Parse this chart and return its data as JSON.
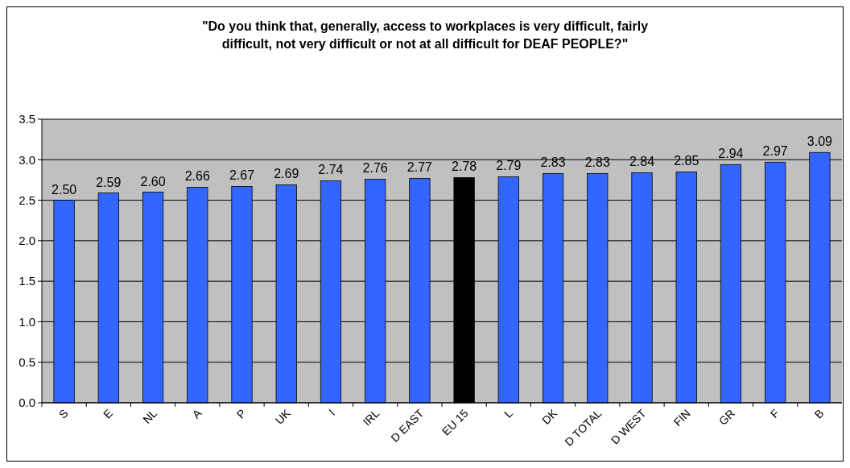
{
  "chart_data": {
    "type": "bar",
    "title": "\"Do you think that, generally, access to workplaces is very difficult, fairly difficult, not very difficult or not at all difficult for DEAF PEOPLE?\"",
    "categories": [
      "S",
      "E",
      "NL",
      "A",
      "P",
      "UK",
      "I",
      "IRL",
      "D EAST",
      "EU 15",
      "L",
      "DK",
      "D TOTAL",
      "D WEST",
      "FIN",
      "GR",
      "F",
      "B"
    ],
    "values": [
      2.5,
      2.59,
      2.6,
      2.66,
      2.67,
      2.69,
      2.74,
      2.76,
      2.77,
      2.78,
      2.79,
      2.83,
      2.83,
      2.84,
      2.85,
      2.94,
      2.97,
      3.09
    ],
    "colors": [
      "#3366ff",
      "#3366ff",
      "#3366ff",
      "#3366ff",
      "#3366ff",
      "#3366ff",
      "#3366ff",
      "#3366ff",
      "#3366ff",
      "#000000",
      "#3366ff",
      "#3366ff",
      "#3366ff",
      "#3366ff",
      "#3366ff",
      "#3366ff",
      "#3366ff",
      "#3366ff"
    ],
    "ylim": [
      0,
      3.5
    ],
    "yticks": [
      {
        "value": 0,
        "label": "0.0"
      },
      {
        "value": 0.5,
        "label": "0.5"
      },
      {
        "value": 1,
        "label": "1.0"
      },
      {
        "value": 1.5,
        "label": "1.5"
      },
      {
        "value": 2,
        "label": "2.0"
      },
      {
        "value": 2.5,
        "label": "2.5"
      },
      {
        "value": 3,
        "label": "3.0"
      },
      {
        "value": 3.5,
        "label": "3.5"
      }
    ],
    "value_labels": [
      "2.50",
      "2.59",
      "2.60",
      "2.66",
      "2.67",
      "2.69",
      "2.74",
      "2.76",
      "2.77",
      "2.78",
      "2.79",
      "2.83",
      "2.83",
      "2.84",
      "2.85",
      "2.94",
      "2.97",
      "3.09"
    ],
    "grid": "y"
  }
}
